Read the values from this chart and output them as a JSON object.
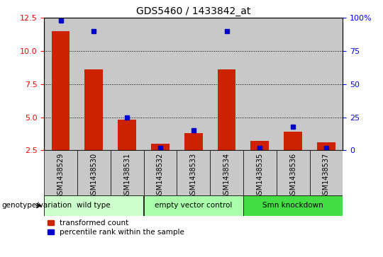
{
  "title": "GDS5460 / 1433842_at",
  "samples": [
    "GSM1438529",
    "GSM1438530",
    "GSM1438531",
    "GSM1438532",
    "GSM1438533",
    "GSM1438534",
    "GSM1438535",
    "GSM1438536",
    "GSM1438537"
  ],
  "transformed_count": [
    11.5,
    8.6,
    4.8,
    3.0,
    3.8,
    8.6,
    3.2,
    3.9,
    3.1
  ],
  "percentile_rank": [
    98,
    90,
    25,
    2,
    15,
    90,
    2,
    18,
    2
  ],
  "ylim_left": [
    2.5,
    12.5
  ],
  "ylim_right": [
    0,
    100
  ],
  "yticks_left": [
    2.5,
    5.0,
    7.5,
    10.0,
    12.5
  ],
  "yticks_right": [
    0,
    25,
    50,
    75,
    100
  ],
  "ytick_right_labels": [
    "0",
    "25",
    "50",
    "75",
    "100%"
  ],
  "bar_color_red": "#CC2200",
  "bar_color_blue": "#0000CC",
  "col_bg_color": "#C8C8C8",
  "plot_bg_color": "#FFFFFF",
  "group_defs": [
    {
      "start": 0,
      "end": 2,
      "label": "wild type",
      "color": "#CCFFCC"
    },
    {
      "start": 3,
      "end": 5,
      "label": "empty vector control",
      "color": "#AAFFAA"
    },
    {
      "start": 6,
      "end": 8,
      "label": "Smn knockdown",
      "color": "#44DD44"
    }
  ],
  "group_label": "genotype/variation",
  "legend_red": "transformed count",
  "legend_blue": "percentile rank within the sample"
}
